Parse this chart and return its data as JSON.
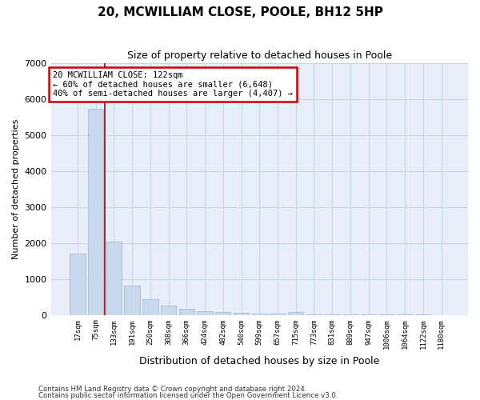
{
  "title": "20, MCWILLIAM CLOSE, POOLE, BH12 5HP",
  "subtitle": "Size of property relative to detached houses in Poole",
  "xlabel": "Distribution of detached houses by size in Poole",
  "ylabel": "Number of detached properties",
  "bar_color": "#c8d9ee",
  "bar_edge_color": "#9ab5d5",
  "grid_color": "#c8d4e8",
  "background_color": "#e8eef8",
  "annotation_box_color": "#cc0000",
  "vline_color": "#aa0000",
  "categories": [
    "17sqm",
    "75sqm",
    "133sqm",
    "191sqm",
    "250sqm",
    "308sqm",
    "366sqm",
    "424sqm",
    "482sqm",
    "540sqm",
    "599sqm",
    "657sqm",
    "715sqm",
    "773sqm",
    "831sqm",
    "889sqm",
    "947sqm",
    "1006sqm",
    "1064sqm",
    "1122sqm",
    "1180sqm"
  ],
  "values": [
    1700,
    5750,
    2050,
    820,
    430,
    270,
    160,
    105,
    75,
    50,
    40,
    30,
    80,
    15,
    12,
    10,
    8,
    7,
    6,
    5,
    4
  ],
  "annotation_line1": "20 MCWILLIAM CLOSE: 122sqm",
  "annotation_line2": "← 60% of detached houses are smaller (6,648)",
  "annotation_line3": "40% of semi-detached houses are larger (4,407) →",
  "vline_x": 1.5,
  "ylim": [
    0,
    7000
  ],
  "yticks": [
    0,
    1000,
    2000,
    3000,
    4000,
    5000,
    6000,
    7000
  ],
  "footnote1": "Contains HM Land Registry data © Crown copyright and database right 2024.",
  "footnote2": "Contains public sector information licensed under the Open Government Licence v3.0."
}
